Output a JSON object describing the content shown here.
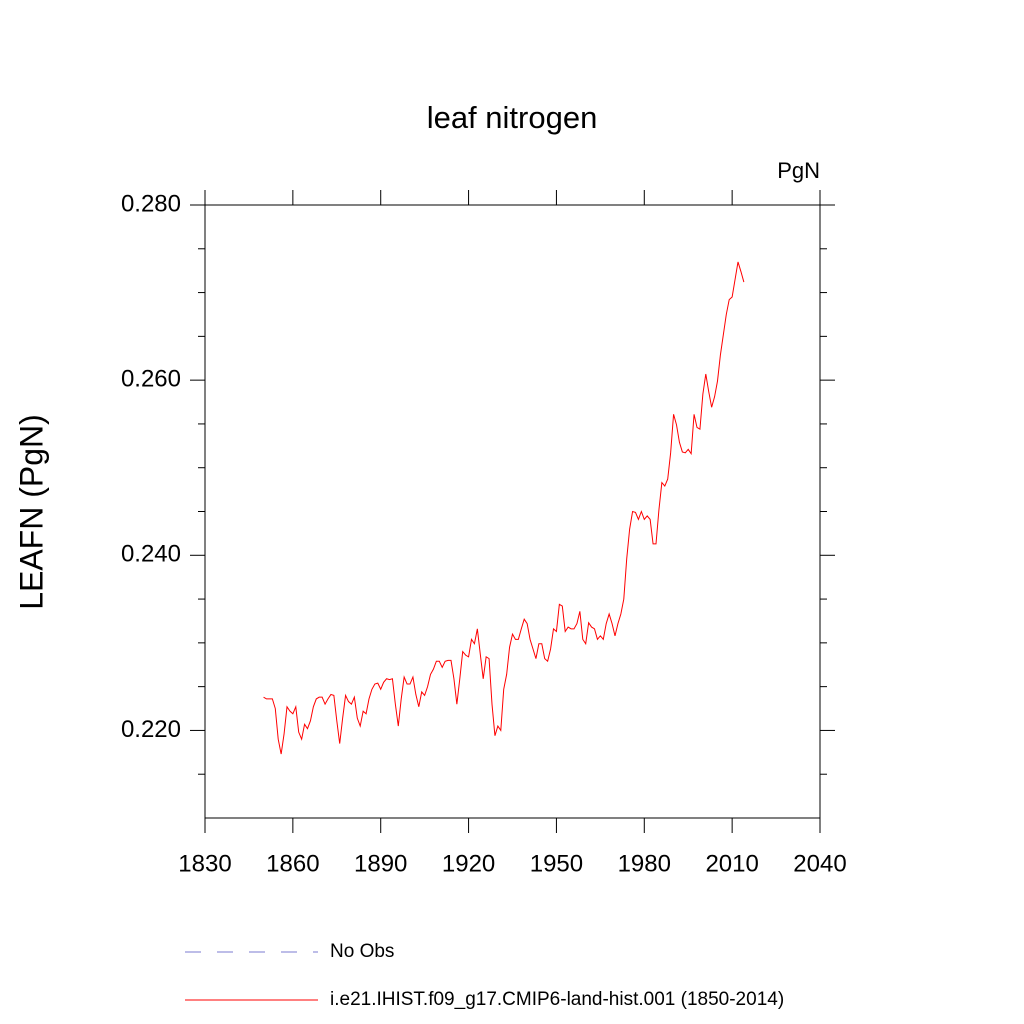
{
  "chart_data": {
    "type": "line",
    "title": "leaf nitrogen",
    "units": "PgN",
    "y_label": "LEAFN  (PgN)",
    "x": [
      1850,
      1851,
      1852,
      1853,
      1854,
      1855,
      1856,
      1857,
      1858,
      1859,
      1860,
      1861,
      1862,
      1863,
      1864,
      1865,
      1866,
      1867,
      1868,
      1869,
      1870,
      1871,
      1872,
      1873,
      1874,
      1875,
      1876,
      1877,
      1878,
      1879,
      1880,
      1881,
      1882,
      1883,
      1884,
      1885,
      1886,
      1887,
      1888,
      1889,
      1890,
      1891,
      1892,
      1893,
      1894,
      1895,
      1896,
      1897,
      1898,
      1899,
      1900,
      1901,
      1902,
      1903,
      1904,
      1905,
      1906,
      1907,
      1908,
      1909,
      1910,
      1911,
      1912,
      1913,
      1914,
      1915,
      1916,
      1917,
      1918,
      1919,
      1920,
      1921,
      1922,
      1923,
      1924,
      1925,
      1926,
      1927,
      1928,
      1929,
      1930,
      1931,
      1932,
      1933,
      1934,
      1935,
      1936,
      1937,
      1938,
      1939,
      1940,
      1941,
      1942,
      1943,
      1944,
      1945,
      1946,
      1947,
      1948,
      1949,
      1950,
      1951,
      1952,
      1953,
      1954,
      1955,
      1956,
      1957,
      1958,
      1959,
      1960,
      1961,
      1962,
      1963,
      1964,
      1965,
      1966,
      1967,
      1968,
      1969,
      1970,
      1971,
      1972,
      1973,
      1974,
      1975,
      1976,
      1977,
      1978,
      1979,
      1980,
      1981,
      1982,
      1983,
      1984,
      1985,
      1986,
      1987,
      1988,
      1989,
      1990,
      1991,
      1992,
      1993,
      1994,
      1995,
      1996,
      1997,
      1998,
      1999,
      2000,
      2001,
      2002,
      2003,
      2004,
      2005,
      2006,
      2007,
      2008,
      2009,
      2010,
      2011,
      2012,
      2013,
      2014
    ],
    "series": [
      {
        "name": "i.e21.IHIST.f09_g17.CMIP6-land-hist.001 (1850-2014)",
        "color": "#ff0000",
        "values": [
          0.2238,
          0.2236,
          0.2236,
          0.2236,
          0.2225,
          0.219,
          0.2173,
          0.2196,
          0.2227,
          0.2222,
          0.2219,
          0.2227,
          0.2198,
          0.219,
          0.2207,
          0.2202,
          0.2211,
          0.2227,
          0.2236,
          0.2238,
          0.2238,
          0.223,
          0.2236,
          0.2241,
          0.224,
          0.2211,
          0.2185,
          0.2214,
          0.224,
          0.2233,
          0.223,
          0.2238,
          0.2214,
          0.2205,
          0.2222,
          0.2219,
          0.2236,
          0.2247,
          0.2253,
          0.2254,
          0.2247,
          0.2255,
          0.2259,
          0.2258,
          0.2259,
          0.223,
          0.2205,
          0.2236,
          0.2261,
          0.2253,
          0.2253,
          0.2261,
          0.2241,
          0.2227,
          0.2244,
          0.224,
          0.225,
          0.2264,
          0.227,
          0.2279,
          0.2279,
          0.2272,
          0.2279,
          0.228,
          0.228,
          0.2259,
          0.223,
          0.2259,
          0.229,
          0.2286,
          0.2284,
          0.2304,
          0.2299,
          0.2316,
          0.2287,
          0.2259,
          0.2284,
          0.2282,
          0.223,
          0.2194,
          0.2205,
          0.22,
          0.2247,
          0.2264,
          0.2295,
          0.231,
          0.2304,
          0.2304,
          0.2316,
          0.2327,
          0.2322,
          0.2304,
          0.2293,
          0.2282,
          0.2299,
          0.2299,
          0.2282,
          0.2279,
          0.2293,
          0.2316,
          0.2313,
          0.2344,
          0.2342,
          0.2313,
          0.2318,
          0.2316,
          0.2316,
          0.2322,
          0.2336,
          0.2304,
          0.2299,
          0.2323,
          0.2318,
          0.2316,
          0.2304,
          0.2308,
          0.2304,
          0.2322,
          0.2333,
          0.2322,
          0.2308,
          0.2322,
          0.2333,
          0.235,
          0.2396,
          0.243,
          0.245,
          0.2449,
          0.2441,
          0.245,
          0.2441,
          0.2445,
          0.2441,
          0.2413,
          0.2413,
          0.2452,
          0.2483,
          0.2479,
          0.2487,
          0.2517,
          0.2561,
          0.2549,
          0.2529,
          0.2518,
          0.2517,
          0.2521,
          0.2516,
          0.2561,
          0.2546,
          0.2544,
          0.2584,
          0.2607,
          0.2587,
          0.2569,
          0.2581,
          0.2599,
          0.2629,
          0.2652,
          0.2675,
          0.2692,
          0.2695,
          0.2715,
          0.2735,
          0.2724,
          0.2712
        ]
      }
    ],
    "reference_lines": [
      {
        "name": "No Obs",
        "color": "#7b7bd0",
        "style": "dashed"
      }
    ],
    "xlim": [
      1830,
      2040
    ],
    "xticks": [
      1830,
      1860,
      1890,
      1920,
      1950,
      1980,
      2010,
      2040
    ],
    "ylim": [
      0.21,
      0.28
    ],
    "yticks": [
      {
        "value": 0.22,
        "label": "0.220"
      },
      {
        "value": 0.24,
        "label": "0.240"
      },
      {
        "value": 0.26,
        "label": "0.260"
      },
      {
        "value": 0.28,
        "label": "0.280"
      }
    ],
    "yminorticks": [
      0.215,
      0.225,
      0.23,
      0.235,
      0.245,
      0.25,
      0.255,
      0.265,
      0.27,
      0.275
    ]
  }
}
